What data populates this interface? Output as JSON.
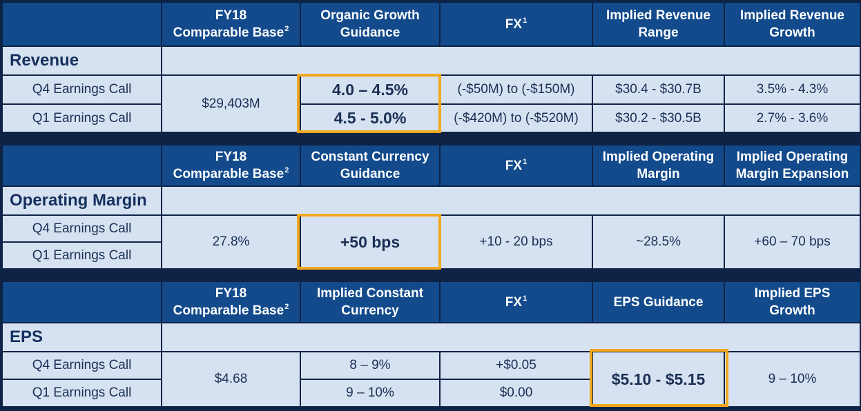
{
  "revenue": {
    "title": "Revenue",
    "headers": {
      "base_line1": "FY18",
      "base_line2": "Comparable Base",
      "base_sup": "2",
      "guidance_line1": "Organic Growth",
      "guidance_line2": "Guidance",
      "fx": "FX",
      "fx_sup": "1",
      "col4_line1": "Implied Revenue",
      "col4_line2": "Range",
      "col5_line1": "Implied Revenue",
      "col5_line2": "Growth"
    },
    "rows": [
      {
        "label": "Q4 Earnings Call",
        "guidance": "4.0 – 4.5%",
        "fx": "(-$50M) to (-$150M)",
        "col4": "$30.4 - $30.7B",
        "col5": "3.5% - 4.3%"
      },
      {
        "label": "Q1 Earnings Call",
        "guidance": "4.5 - 5.0%",
        "fx": "(-$420M) to (-$520M)",
        "col4": "$30.2 - $30.5B",
        "col5": "2.7% - 3.6%"
      }
    ],
    "base": "$29,403M"
  },
  "operating_margin": {
    "title": "Operating Margin",
    "headers": {
      "base_line1": "FY18",
      "base_line2": "Comparable Base",
      "base_sup": "2",
      "guidance_line1": "Constant Currency",
      "guidance_line2": "Guidance",
      "fx": "FX",
      "fx_sup": "1",
      "col4_line1": "Implied Operating",
      "col4_line2": "Margin",
      "col5_line1": "Implied Operating",
      "col5_line2": "Margin Expansion"
    },
    "rows": [
      {
        "label": "Q4 Earnings Call"
      },
      {
        "label": "Q1 Earnings Call"
      }
    ],
    "base": "27.8%",
    "guidance": "+50 bps",
    "fx": "+10 - 20 bps",
    "col4": "~28.5%",
    "col5": "+60 – 70 bps"
  },
  "eps": {
    "title": "EPS",
    "headers": {
      "base_line1": "FY18",
      "base_line2": "Comparable Base",
      "base_sup": "2",
      "col2_line1": "Implied Constant",
      "col2_line2": "Currency",
      "fx": "FX",
      "fx_sup": "1",
      "col4": "EPS Guidance",
      "col5_line1": "Implied EPS",
      "col5_line2": "Growth"
    },
    "rows": [
      {
        "label": "Q4 Earnings Call",
        "col2": "8 – 9%",
        "fx": "+$0.05"
      },
      {
        "label": "Q1 Earnings Call",
        "col2": "9 – 10%",
        "fx": "$0.00"
      }
    ],
    "base": "$4.68",
    "guidance": "$5.10 - $5.15",
    "col5": "9 – 10%"
  },
  "colors": {
    "background": "#0f2346",
    "header": "#124a8c",
    "cell": "#d6e2f1",
    "highlight": "#f2a81d",
    "text_dark": "#1b2f55"
  }
}
